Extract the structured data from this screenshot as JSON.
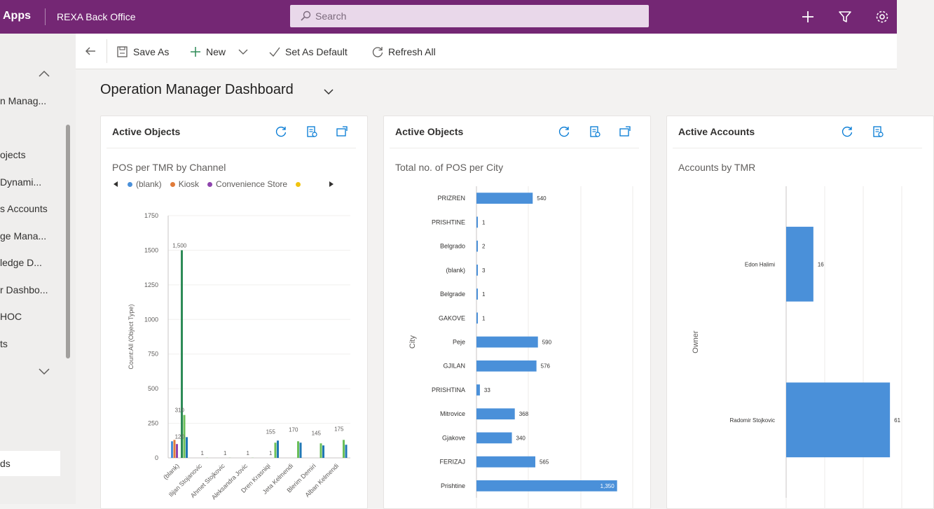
{
  "topbar": {
    "apps_label": "Apps",
    "app_name": "REXA Back Office",
    "search_placeholder": "Search",
    "bg_color": "#742774"
  },
  "sidebar": {
    "items": [
      "n Manag...",
      "ojects",
      "Dynami...",
      "s Accounts",
      "ge Mana...",
      "ledge D...",
      "r Dashbo...",
      "HOC",
      "ts",
      "ds"
    ]
  },
  "commandbar": {
    "save_as": "Save As",
    "new": "New",
    "set_as_default": "Set As Default",
    "refresh_all": "Refresh All"
  },
  "dashboard": {
    "title": "Operation Manager Dashboard"
  },
  "cards": [
    {
      "title": "Active Objects",
      "chart_title": "POS per TMR by Channel",
      "legend": [
        "(blank)",
        "Kiosk",
        "Convenience Store",
        ""
      ]
    },
    {
      "title": "Active Objects",
      "chart_title": "Total no. of POS per City"
    },
    {
      "title": "Active Accounts",
      "chart_title": "Accounts by TMR"
    }
  ],
  "chart_data": [
    {
      "type": "bar",
      "title": "POS per TMR by Channel",
      "ylabel": "Count:All (Object Type)",
      "ylim": [
        0,
        1750
      ],
      "yticks": [
        0,
        250,
        500,
        750,
        1000,
        1250,
        1500,
        1750
      ],
      "categories": [
        "(blank)",
        "Ilijan Stojanovic",
        "Ahmet Stojkovic",
        "Aleksandra Jovic",
        "Dren Krasniqi",
        "Jeta Kelmendi",
        "Blerim Demiri",
        "Alban Kelmendi"
      ],
      "series": [
        {
          "name": "(blank)",
          "color": "#4a90d9",
          "values": [
            120,
            0,
            0,
            0,
            0,
            0,
            0,
            0
          ]
        },
        {
          "name": "Kiosk",
          "color": "#e07b39",
          "values": [
            130,
            0,
            0,
            0,
            0,
            0,
            0,
            0
          ]
        },
        {
          "name": "Convenience Store",
          "color": "#8e44ad",
          "values": [
            100,
            0,
            0,
            0,
            0,
            0,
            0,
            0
          ]
        },
        {
          "name": "",
          "color": "#f1c40f",
          "values": [
            0,
            0,
            0,
            0,
            0,
            0,
            0,
            0
          ]
        },
        {
          "name": "",
          "color": "#2e8b57",
          "values": [
            1500,
            0,
            0,
            0,
            0,
            0,
            0,
            0
          ]
        },
        {
          "name": "",
          "color": "#6bbf59",
          "values": [
            310,
            1,
            1,
            1,
            110,
            120,
            105,
            130
          ]
        },
        {
          "name": "",
          "color": "#1f77b4",
          "values": [
            150,
            0,
            0,
            0,
            125,
            110,
            90,
            95
          ]
        }
      ],
      "data_labels": [
        "120",
        "1,500",
        "310",
        "1",
        "1",
        "1",
        "1",
        "155",
        "170",
        "145",
        "175"
      ]
    },
    {
      "type": "bar",
      "orientation": "horizontal",
      "title": "Total no. of POS per City",
      "ylabel": "City",
      "categories": [
        "PRIZREN",
        "PRISHTINE",
        "Belgrado",
        "(blank)",
        "Belgrade",
        "GAKOVE",
        "Peje",
        "GJILAN",
        "PRISHTINA",
        "Mitrovice",
        "Gjakove",
        "FERIZAJ",
        "Prishtine"
      ],
      "values": [
        540,
        1,
        2,
        3,
        1,
        1,
        590,
        576,
        33,
        368,
        340,
        565,
        1350
      ],
      "value_labels": [
        "540",
        "1",
        "2",
        "3",
        "1",
        "1",
        "590",
        "576",
        "33",
        "368",
        "340",
        "565",
        "1,350"
      ],
      "color": "#4a90d9",
      "xlim": [
        0,
        1500
      ]
    },
    {
      "type": "bar",
      "orientation": "horizontal",
      "title": "Accounts by TMR",
      "ylabel": "Owner",
      "categories": [
        "Edon Halimi",
        "Radomir Stojkovic"
      ],
      "values": [
        16,
        61
      ],
      "value_labels": [
        "16",
        "61"
      ],
      "color": "#4a90d9",
      "xlim": [
        0,
        70
      ]
    }
  ]
}
